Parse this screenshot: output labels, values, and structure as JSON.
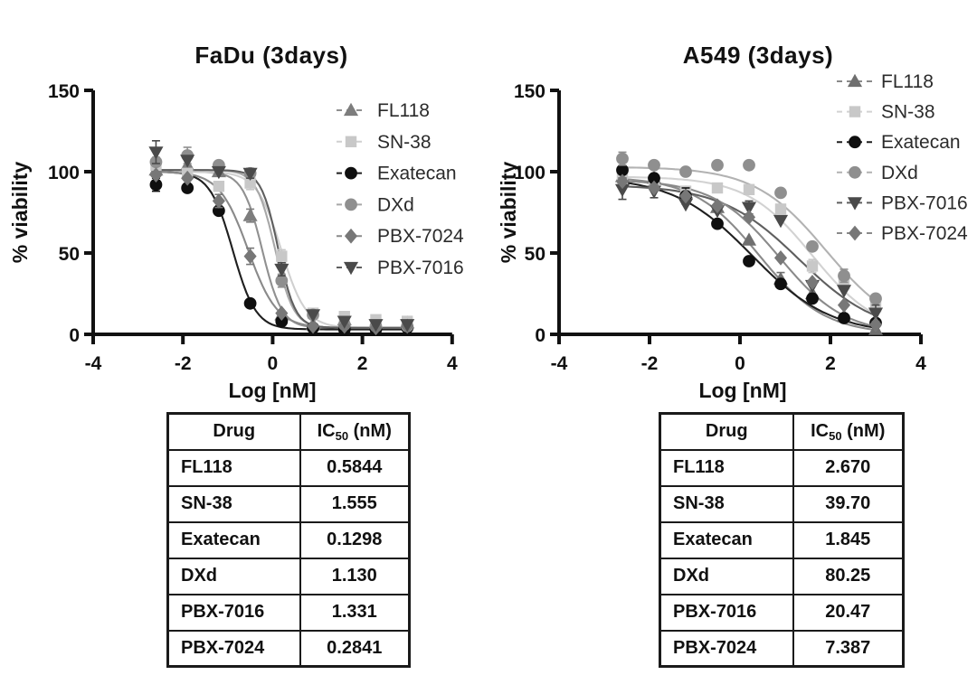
{
  "chart_data": {
    "charts": [
      {
        "type": "line",
        "title": "FaDu (3days)",
        "xlabel": "Log [nM]",
        "ylabel": "% viability",
        "xlim": [
          -4,
          4
        ],
        "ylim": [
          0,
          150
        ],
        "xticks": [
          -4,
          -2,
          0,
          2,
          4
        ],
        "yticks": [
          0,
          50,
          100,
          150
        ],
        "grid": false,
        "legend_position": "inside-top-right",
        "x": [
          -2.6,
          -1.9,
          -1.2,
          -0.5,
          0.2,
          0.9,
          1.6,
          2.3,
          3.0
        ],
        "series": [
          {
            "name": "FL118",
            "marker": "triangle-up",
            "marker_color": "#7d7d7d",
            "line_color": "#909090",
            "values": [
              101,
              104,
              100,
              73,
              12,
              6,
              9,
              7,
              7
            ],
            "err": [
              0,
              6,
              0,
              4,
              0,
              0,
              3,
              0,
              0
            ],
            "fit": {
              "top": 100,
              "bottom": 4,
              "hill": 2.0,
              "log_ic50": -0.233
            }
          },
          {
            "name": "SN-38",
            "marker": "square",
            "marker_color": "#c8c8c8",
            "line_color": "#d0d0d0",
            "values": [
              104,
              99,
              91,
              93,
              48,
              13,
              11,
              9,
              8
            ],
            "err": [
              5,
              0,
              0,
              4,
              4,
              0,
              0,
              0,
              0
            ],
            "fit": {
              "top": 100,
              "bottom": 4,
              "hill": 1.6,
              "log_ic50": 0.192
            }
          },
          {
            "name": "Exatecan",
            "marker": "circle",
            "marker_color": "#0f0f0f",
            "line_color": "#1f1f1f",
            "values": [
              92,
              90,
              76,
              19,
              8,
              4,
              3,
              3,
              4
            ],
            "err": [
              4,
              0,
              0,
              0,
              0,
              0,
              0,
              0,
              0
            ],
            "fit": {
              "top": 100,
              "bottom": 3,
              "hill": 1.7,
              "log_ic50": -0.887
            }
          },
          {
            "name": "DXd",
            "marker": "circle",
            "marker_color": "#8f8f8f",
            "line_color": "#a8a8a8",
            "values": [
              106,
              110,
              104,
              99,
              33,
              12,
              6,
              5,
              5
            ],
            "err": [
              0,
              5,
              0,
              0,
              4,
              0,
              0,
              0,
              0
            ],
            "fit": {
              "top": 101,
              "bottom": 4,
              "hill": 2.1,
              "log_ic50": 0.053
            }
          },
          {
            "name": "PBX-7024",
            "marker": "diamond",
            "marker_color": "#777777",
            "line_color": "#8a8a8a",
            "values": [
              98,
              96,
              82,
              48,
              13,
              5,
              5,
              4,
              5
            ],
            "err": [
              0,
              0,
              4,
              5,
              0,
              0,
              0,
              0,
              0
            ],
            "fit": {
              "top": 100,
              "bottom": 4,
              "hill": 1.35,
              "log_ic50": -0.547
            }
          },
          {
            "name": "PBX-7016",
            "marker": "triangle-down",
            "marker_color": "#4a4a4a",
            "line_color": "#5f5f5f",
            "values": [
              112,
              107,
              100,
              99,
              40,
              12,
              8,
              6,
              6
            ],
            "err": [
              7,
              0,
              0,
              3,
              4,
              0,
              0,
              0,
              0
            ],
            "fit": {
              "top": 101,
              "bottom": 4,
              "hill": 2.3,
              "log_ic50": 0.124
            }
          }
        ]
      },
      {
        "type": "line",
        "title": "A549 (3days)",
        "xlabel": "Log [nM]",
        "ylabel": "% viability",
        "xlim": [
          -4,
          4
        ],
        "ylim": [
          0,
          150
        ],
        "xticks": [
          -4,
          -2,
          0,
          2,
          4
        ],
        "yticks": [
          0,
          50,
          100,
          150
        ],
        "grid": false,
        "legend_position": "outside-top-right",
        "x": [
          -2.6,
          -1.9,
          -1.2,
          -0.5,
          0.2,
          0.9,
          1.6,
          2.3,
          3.0
        ],
        "series": [
          {
            "name": "FL118",
            "marker": "triangle-up",
            "marker_color": "#6f6f6f",
            "line_color": "#8a8a8a",
            "values": [
              97,
              96,
              87,
              78,
              58,
              34,
              25,
              11,
              3
            ],
            "err": [
              0,
              0,
              0,
              0,
              0,
              4,
              0,
              0,
              0
            ],
            "fit": {
              "top": 97,
              "bottom": 0,
              "hill": 0.6,
              "log_ic50": 0.427
            }
          },
          {
            "name": "SN-38",
            "marker": "square",
            "marker_color": "#c8c8c8",
            "line_color": "#d2d2d2",
            "values": [
              96,
              92,
              88,
              90,
              89,
              77,
              42,
              31,
              17
            ],
            "err": [
              0,
              0,
              0,
              0,
              0,
              0,
              4,
              0,
              4
            ],
            "fit": {
              "top": 97,
              "bottom": 0,
              "hill": 0.6,
              "log_ic50": 1.599
            }
          },
          {
            "name": "Exatecan",
            "marker": "circle",
            "marker_color": "#0f0f0f",
            "line_color": "#1f1f1f",
            "values": [
              101,
              96,
              85,
              68,
              45,
              31,
              22,
              10,
              7
            ],
            "err": [
              5,
              0,
              5,
              0,
              0,
              0,
              0,
              0,
              0
            ],
            "fit": {
              "top": 97,
              "bottom": 0,
              "hill": 0.5,
              "log_ic50": 0.266
            }
          },
          {
            "name": "DXd",
            "marker": "circle",
            "marker_color": "#8f8f8f",
            "line_color": "#b2b2b2",
            "values": [
              108,
              104,
              100,
              104,
              104,
              87,
              54,
              36,
              22
            ],
            "err": [
              4,
              0,
              0,
              0,
              0,
              0,
              0,
              4,
              0
            ],
            "fit": {
              "top": 103,
              "bottom": 0,
              "hill": 0.55,
              "log_ic50": 1.904
            }
          },
          {
            "name": "PBX-7016",
            "marker": "triangle-down",
            "marker_color": "#4a4a4a",
            "line_color": "#5f5f5f",
            "values": [
              89,
              88,
              80,
              76,
              78,
              70,
              30,
              27,
              13
            ],
            "err": [
              6,
              4,
              0,
              0,
              4,
              0,
              0,
              0,
              5
            ],
            "fit": {
              "top": 92,
              "bottom": 0,
              "hill": 0.5,
              "log_ic50": 1.311
            }
          },
          {
            "name": "PBX-7024",
            "marker": "diamond",
            "marker_color": "#777777",
            "line_color": "#8a8a8a",
            "values": [
              94,
              90,
              85,
              79,
              72,
              47,
              32,
              18,
              6
            ],
            "err": [
              0,
              0,
              0,
              0,
              0,
              0,
              0,
              0,
              0
            ],
            "fit": {
              "top": 95,
              "bottom": 0,
              "hill": 0.6,
              "log_ic50": 0.868
            }
          }
        ]
      }
    ],
    "tables": [
      {
        "header": {
          "drug": "Drug",
          "ic50_prefix": "IC",
          "ic50_sub": "50",
          "ic50_suffix": " (nM)"
        },
        "rows": [
          {
            "drug": "FL118",
            "ic50": "0.5844"
          },
          {
            "drug": "SN-38",
            "ic50": "1.555"
          },
          {
            "drug": "Exatecan",
            "ic50": "0.1298"
          },
          {
            "drug": "DXd",
            "ic50": "1.130"
          },
          {
            "drug": "PBX-7016",
            "ic50": "1.331"
          },
          {
            "drug": "PBX-7024",
            "ic50": "0.2841"
          }
        ]
      },
      {
        "header": {
          "drug": "Drug",
          "ic50_prefix": "IC",
          "ic50_sub": "50",
          "ic50_suffix": " (nM)"
        },
        "rows": [
          {
            "drug": "FL118",
            "ic50": "2.670"
          },
          {
            "drug": "SN-38",
            "ic50": "39.70"
          },
          {
            "drug": "Exatecan",
            "ic50": "1.845"
          },
          {
            "drug": "DXd",
            "ic50": "80.25"
          },
          {
            "drug": "PBX-7016",
            "ic50": "20.47"
          },
          {
            "drug": "PBX-7024",
            "ic50": "7.387"
          }
        ]
      }
    ],
    "colors": {
      "axis": "#111111",
      "background": "#ffffff",
      "legend_text": "#2b2b2b"
    }
  }
}
